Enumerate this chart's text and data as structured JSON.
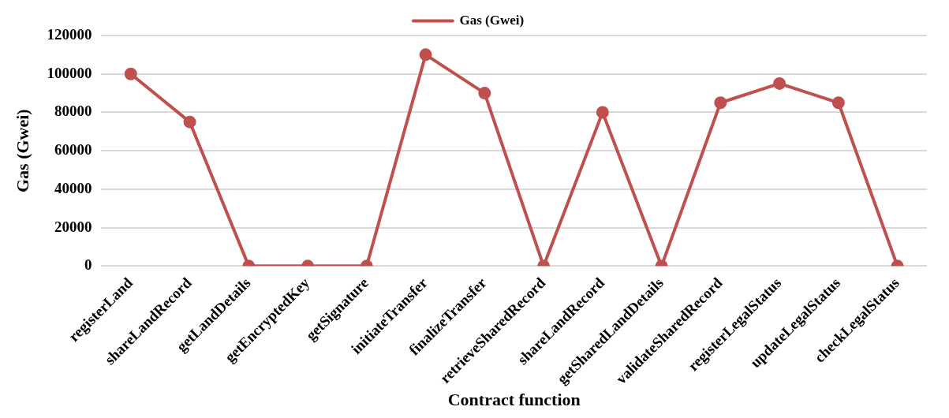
{
  "chart_data": {
    "type": "line",
    "xlabel": "Contract function",
    "ylabel": "Gas (Gwei)",
    "categories": [
      "registerLand",
      "shareLandRecord",
      "getLandDetails",
      "getEncryptedKey",
      "getSignature",
      "initiateTransfer",
      "finalizeTransfer",
      "retrieveSharedRecord",
      "shareLandRecord",
      "getSharedLandDetails",
      "validateSharedRecord",
      "registerLegalStatus",
      "updateLegalStatus",
      "checkLegalStatus"
    ],
    "series": [
      {
        "name": "Gas (Gwei)",
        "color": "#c0504d",
        "values": [
          100000,
          75000,
          0,
          0,
          0,
          110000,
          90000,
          0,
          80000,
          0,
          85000,
          95000,
          85000,
          0
        ]
      }
    ],
    "ylim": [
      0,
      120000
    ],
    "yticks": [
      0,
      20000,
      40000,
      60000,
      80000,
      100000,
      120000
    ],
    "grid": "y",
    "legend": "top",
    "marker": "circle",
    "line_style": "solid"
  }
}
